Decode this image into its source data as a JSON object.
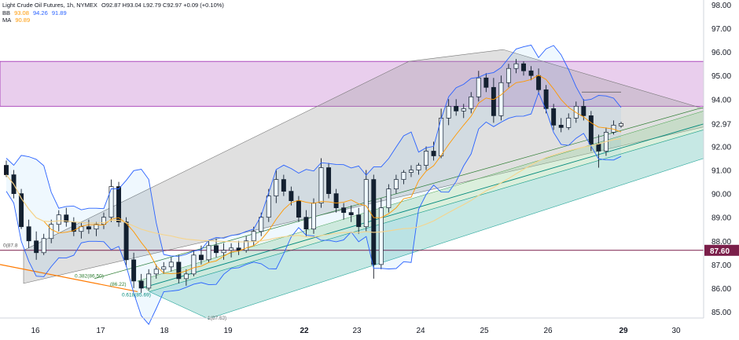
{
  "header": {
    "symbol": "Light Crude Oil Futures, 1h, NYMEX",
    "ohlc": "O92.87  H93.04  L92.79  C92.97  +0.09 (+0.10%)",
    "bb_label": "BB",
    "bb_values": [
      "93.08",
      "94.26",
      "91.89"
    ],
    "ma_label": "MA",
    "ma_value": "90.89"
  },
  "colors": {
    "up": "#ffffff",
    "down": "#131722",
    "bb": "#2962ff",
    "ma_short": "#ff9800",
    "ma_long": "#f5d48c",
    "zone": "#ce93d8",
    "channel_gray": "#9e9e9e",
    "channel_green": "#a5d6a7",
    "channel_teal": "#80cbc4",
    "hline": "#7b1f4a",
    "trend": "#ff7a00"
  },
  "price_axis": {
    "ticks": [
      "98.00",
      "97.00",
      "96.00",
      "95.00",
      "94.00",
      "92.97",
      "92.00",
      "91.00",
      "90.00",
      "89.00",
      "88.00",
      "87.60",
      "87.00",
      "86.00",
      "85.00"
    ]
  },
  "time_axis": {
    "labels": [
      "16",
      "17",
      "18",
      "19",
      "22",
      "23",
      "24",
      "25",
      "26",
      "29",
      "30"
    ]
  },
  "annotations": {
    "hline_label": "87.60",
    "fib_0382": "0.382(86.50)",
    "fib_0382_inner": "(86.22)",
    "fib_0618": "0.618(85.69)",
    "fib_1": "1(87.63)",
    "fib_0": "0(87.8"
  },
  "chart_data": {
    "type": "candlestick",
    "symbol": "Light Crude Oil Futures",
    "timeframe": "1h",
    "ylim": [
      84.6,
      98.3
    ],
    "x_labels": [
      "16",
      "17",
      "18",
      "19",
      "22",
      "23",
      "24",
      "25",
      "26",
      "29",
      "30"
    ],
    "resistance_zone": [
      93.7,
      95.6
    ],
    "horizontal_line": 87.6,
    "last_close": 92.97,
    "candles": [
      [
        91.2,
        91.4,
        90.7,
        90.8
      ],
      [
        90.8,
        91.0,
        89.8,
        90.0
      ],
      [
        90.0,
        90.2,
        88.5,
        88.6
      ],
      [
        88.6,
        88.9,
        87.7,
        88.0
      ],
      [
        88.0,
        88.4,
        87.2,
        87.5
      ],
      [
        87.5,
        88.3,
        87.4,
        88.1
      ],
      [
        88.1,
        88.9,
        87.9,
        88.7
      ],
      [
        88.7,
        89.3,
        88.4,
        89.1
      ],
      [
        89.1,
        89.4,
        88.6,
        88.8
      ],
      [
        88.8,
        89.0,
        88.2,
        88.4
      ],
      [
        88.4,
        88.8,
        88.1,
        88.6
      ],
      [
        88.6,
        88.9,
        88.3,
        88.5
      ],
      [
        88.5,
        88.8,
        88.2,
        88.7
      ],
      [
        88.7,
        89.2,
        88.5,
        89.0
      ],
      [
        89.0,
        90.6,
        88.8,
        90.3
      ],
      [
        90.3,
        90.5,
        88.6,
        88.8
      ],
      [
        88.8,
        89.0,
        86.9,
        87.2
      ],
      [
        87.2,
        87.5,
        86.0,
        86.3
      ],
      [
        86.3,
        86.6,
        85.8,
        86.0
      ],
      [
        86.0,
        86.8,
        85.9,
        86.6
      ],
      [
        86.6,
        87.0,
        86.4,
        86.8
      ],
      [
        86.8,
        87.1,
        86.6,
        86.9
      ],
      [
        86.9,
        87.3,
        86.7,
        87.1
      ],
      [
        87.1,
        87.4,
        86.2,
        86.4
      ],
      [
        86.4,
        86.8,
        86.1,
        86.6
      ],
      [
        86.6,
        87.6,
        86.5,
        87.4
      ],
      [
        87.4,
        87.8,
        87.0,
        87.2
      ],
      [
        87.2,
        88.0,
        87.1,
        87.8
      ],
      [
        87.8,
        88.1,
        87.3,
        87.5
      ],
      [
        87.5,
        87.9,
        87.2,
        87.6
      ],
      [
        87.6,
        87.9,
        87.3,
        87.7
      ],
      [
        87.7,
        88.0,
        87.4,
        87.6
      ],
      [
        87.6,
        88.2,
        87.5,
        88.0
      ],
      [
        88.0,
        88.6,
        87.8,
        88.4
      ],
      [
        88.4,
        89.2,
        88.2,
        89.0
      ],
      [
        89.0,
        90.2,
        88.8,
        89.9
      ],
      [
        89.9,
        91.0,
        89.6,
        90.6
      ],
      [
        90.6,
        90.8,
        89.9,
        90.1
      ],
      [
        90.1,
        90.3,
        89.5,
        89.7
      ],
      [
        89.7,
        89.9,
        88.8,
        89.0
      ],
      [
        89.0,
        89.3,
        88.2,
        88.5
      ],
      [
        88.5,
        89.8,
        88.3,
        89.6
      ],
      [
        89.6,
        91.5,
        89.4,
        91.1
      ],
      [
        91.1,
        91.3,
        89.8,
        90.0
      ],
      [
        90.0,
        90.2,
        89.2,
        89.4
      ],
      [
        89.4,
        89.6,
        88.9,
        89.2
      ],
      [
        89.2,
        89.5,
        88.8,
        89.1
      ],
      [
        89.1,
        89.4,
        88.3,
        88.6
      ],
      [
        88.6,
        91.0,
        88.4,
        90.6
      ],
      [
        90.6,
        90.8,
        86.4,
        87.0
      ],
      [
        87.0,
        89.8,
        86.8,
        89.4
      ],
      [
        89.4,
        90.4,
        89.2,
        90.2
      ],
      [
        90.2,
        90.8,
        90.0,
        90.6
      ],
      [
        90.6,
        91.0,
        90.4,
        90.9
      ],
      [
        90.9,
        91.2,
        90.7,
        91.0
      ],
      [
        91.0,
        91.3,
        90.8,
        91.2
      ],
      [
        91.2,
        92.0,
        91.0,
        91.8
      ],
      [
        91.8,
        92.2,
        91.4,
        91.6
      ],
      [
        91.6,
        93.6,
        91.5,
        93.2
      ],
      [
        93.2,
        94.0,
        92.9,
        93.7
      ],
      [
        93.7,
        94.0,
        93.3,
        93.5
      ],
      [
        93.5,
        93.8,
        93.2,
        93.6
      ],
      [
        93.6,
        94.3,
        93.4,
        94.1
      ],
      [
        94.1,
        95.2,
        93.9,
        94.9
      ],
      [
        94.9,
        95.1,
        94.3,
        94.5
      ],
      [
        94.5,
        94.9,
        93.0,
        93.3
      ],
      [
        93.3,
        95.0,
        93.1,
        94.7
      ],
      [
        94.7,
        95.5,
        94.5,
        95.3
      ],
      [
        95.3,
        95.7,
        95.1,
        95.5
      ],
      [
        95.5,
        95.6,
        95.0,
        95.2
      ],
      [
        95.2,
        95.4,
        94.8,
        95.0
      ],
      [
        95.0,
        95.3,
        94.2,
        94.4
      ],
      [
        94.4,
        94.6,
        93.4,
        93.6
      ],
      [
        93.6,
        93.8,
        92.7,
        92.9
      ],
      [
        92.9,
        93.2,
        92.6,
        92.8
      ],
      [
        92.8,
        93.4,
        92.7,
        93.2
      ],
      [
        93.2,
        93.9,
        93.0,
        93.7
      ],
      [
        93.7,
        94.0,
        93.1,
        93.3
      ],
      [
        93.3,
        93.5,
        91.8,
        92.1
      ],
      [
        92.1,
        92.5,
        91.1,
        91.8
      ],
      [
        91.8,
        92.8,
        91.6,
        92.6
      ],
      [
        92.6,
        93.1,
        92.5,
        92.9
      ],
      [
        92.87,
        93.04,
        92.79,
        92.97
      ]
    ]
  }
}
